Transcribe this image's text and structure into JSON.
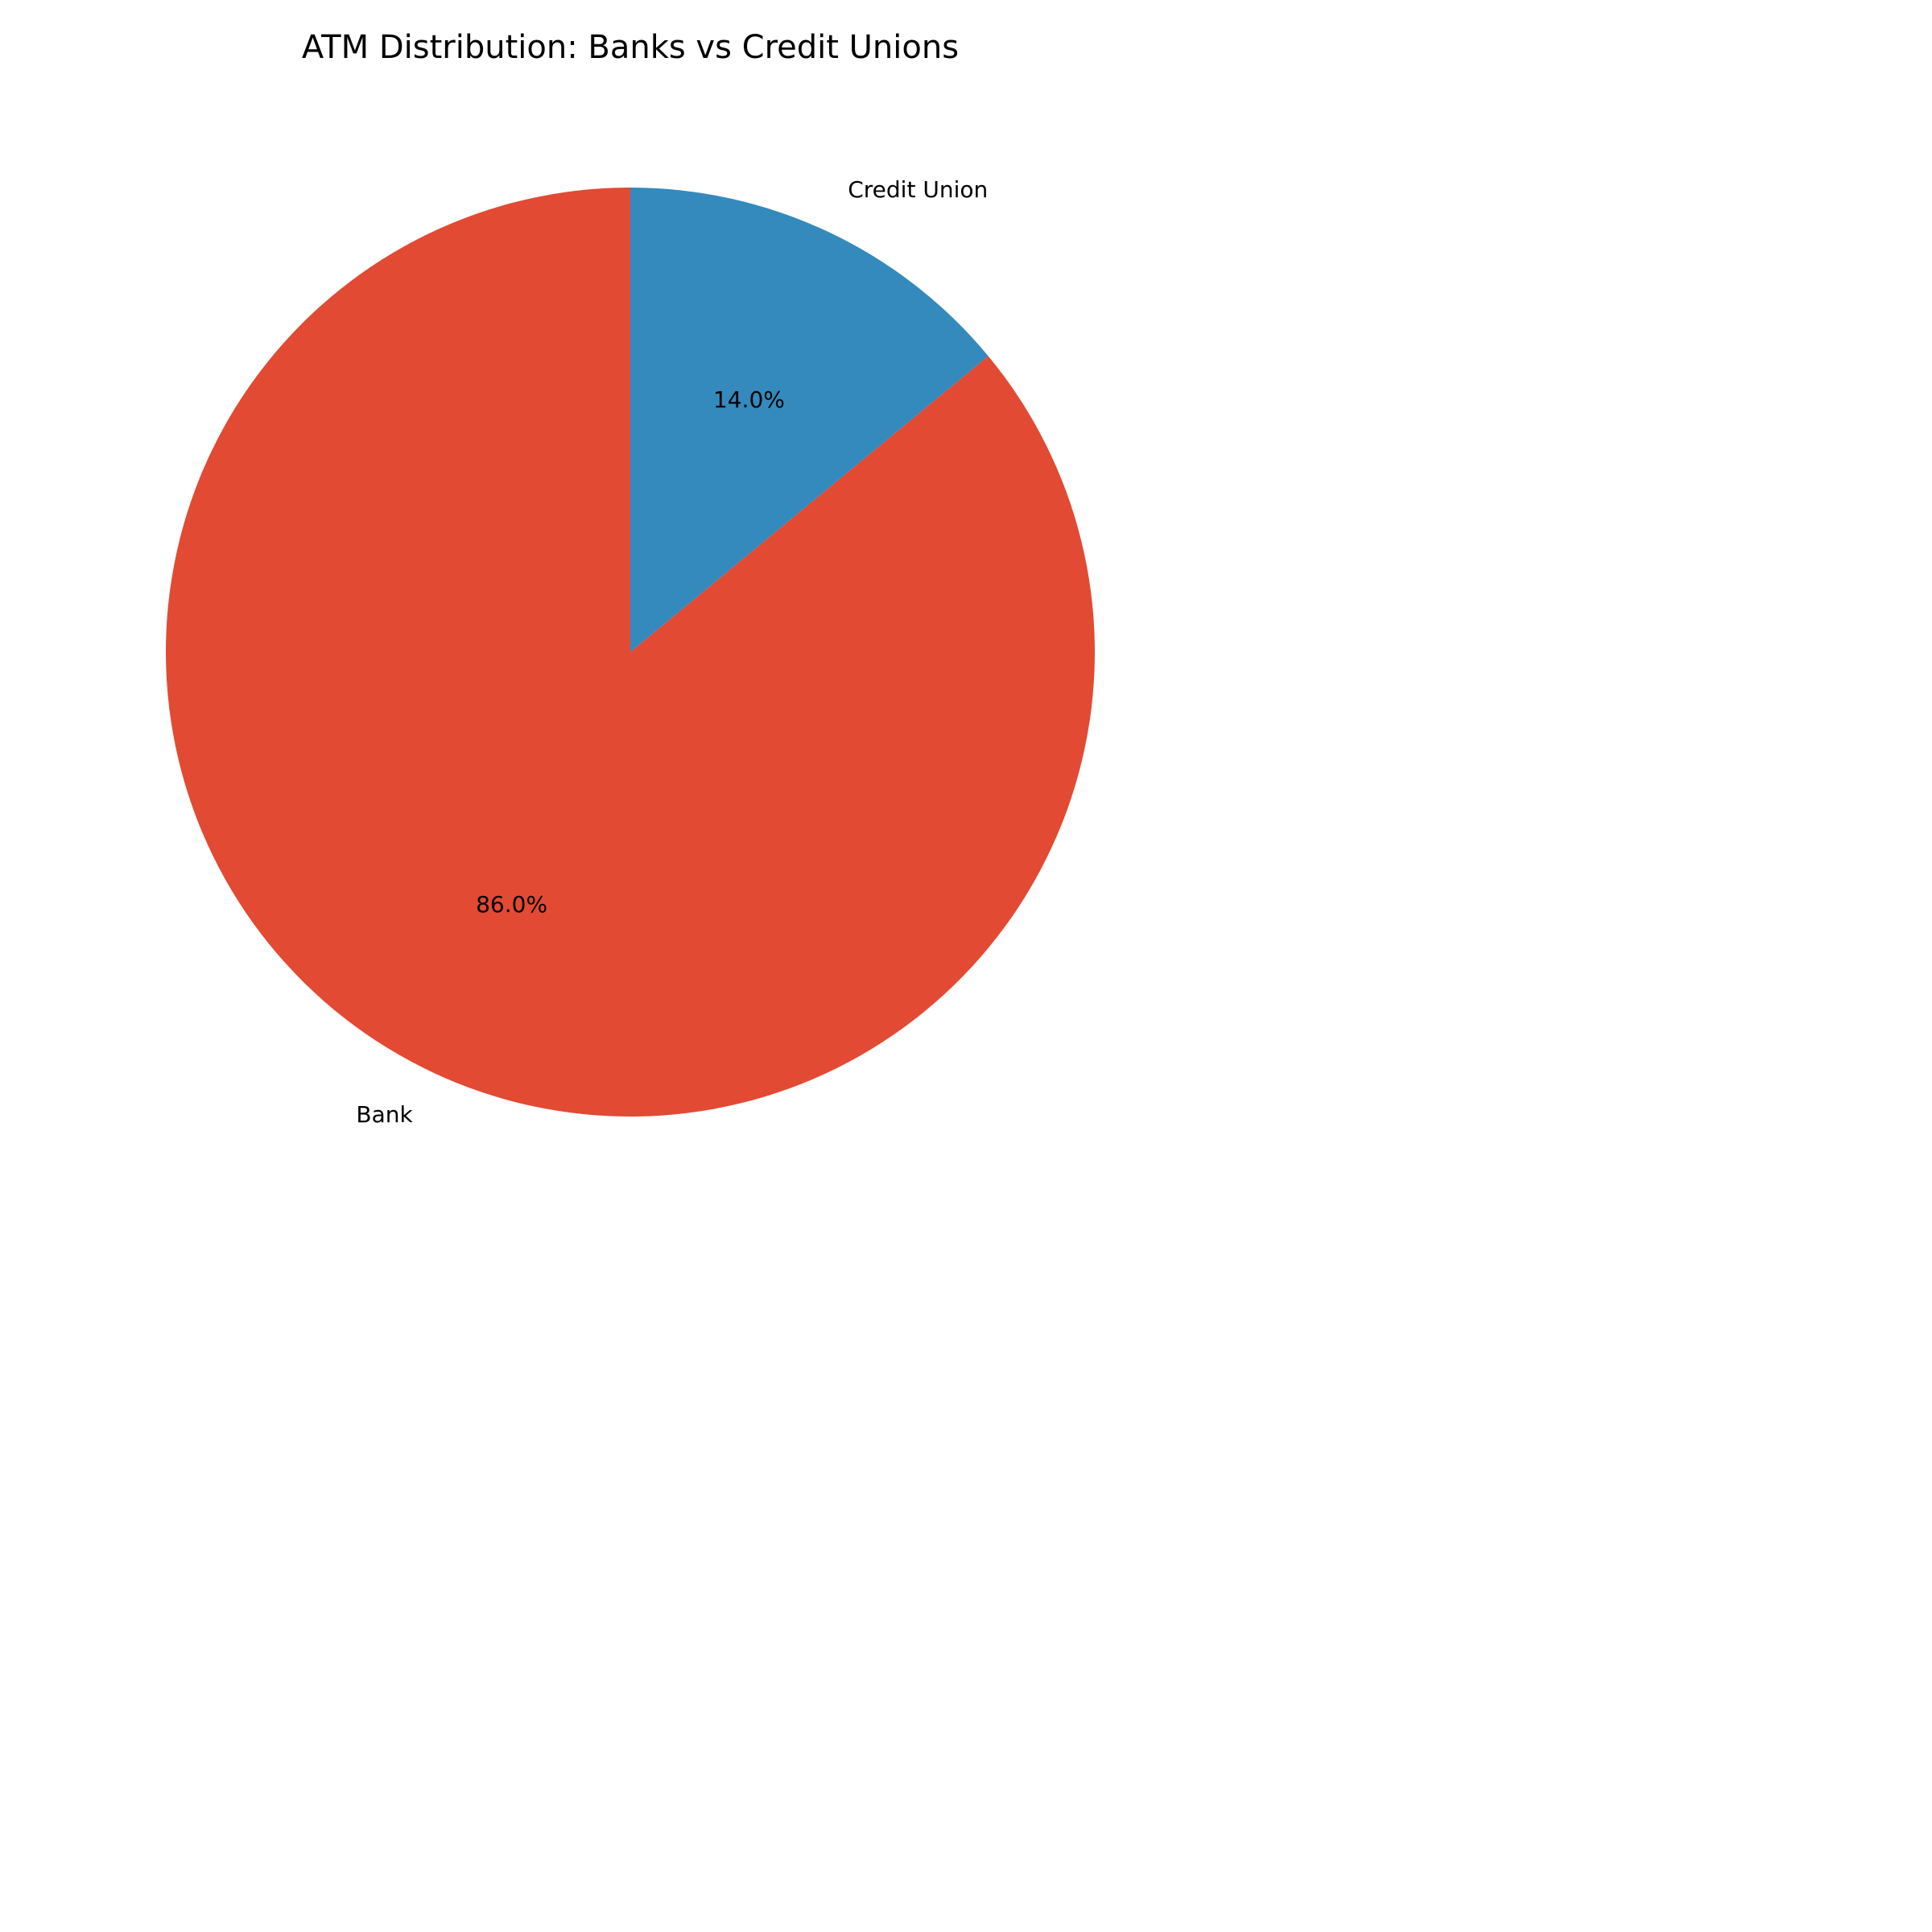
{
  "chart_data": {
    "type": "pie",
    "title": "ATM Distribution: Banks vs Credit Unions",
    "slices": [
      {
        "label": "Bank",
        "value": 86.0,
        "percent_label": "86.0%",
        "color": "#E24A33"
      },
      {
        "label": "Credit Union",
        "value": 14.0,
        "percent_label": "14.0%",
        "color": "#348ABD"
      }
    ],
    "start_angle_deg": 90,
    "direction": "counterclockwise",
    "legend": "none"
  }
}
